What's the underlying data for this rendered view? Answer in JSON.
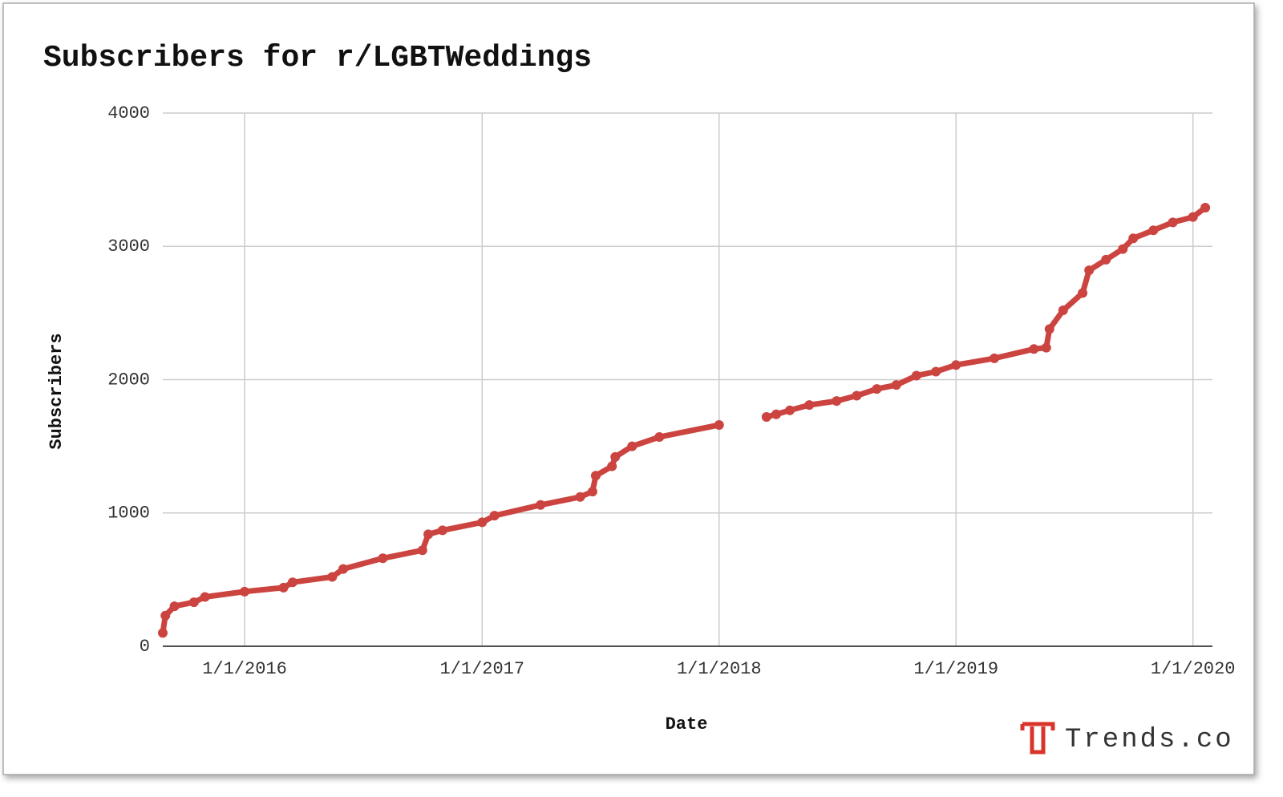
{
  "chart_data": {
    "type": "line",
    "title": "Subscribers for r/LGBTWeddings",
    "x_label": "Date",
    "y_label": "Subscribers",
    "watermark": "Trends.co",
    "color": "#cc4440",
    "grid": true,
    "x": [
      "8/28/2015",
      "9/1/2015",
      "9/15/2015",
      "10/15/2015",
      "11/1/2015",
      "1/1/2016",
      "3/1/2016",
      "3/15/2016",
      "5/15/2016",
      "6/1/2016",
      "8/1/2016",
      "10/1/2016",
      "10/10/2016",
      "11/1/2016",
      "1/1/2017",
      "1/20/2017",
      "4/1/2017",
      "6/1/2017",
      "6/20/2017",
      "6/25/2017",
      "7/20/2017",
      "7/25/2017",
      "8/20/2017",
      "10/1/2017",
      "1/1/2018",
      "2/1/2018",
      "3/15/2018",
      "3/30/2018",
      "4/20/2018",
      "5/20/2018",
      "7/1/2018",
      "8/1/2018",
      "9/1/2018",
      "10/1/2018",
      "11/1/2018",
      "12/1/2018",
      "1/1/2019",
      "3/1/2019",
      "5/1/2019",
      "5/20/2019",
      "5/25/2019",
      "6/15/2019",
      "7/15/2019",
      "7/25/2019",
      "8/20/2019",
      "9/15/2019",
      "10/1/2019",
      "11/1/2019",
      "12/1/2019",
      "1/1/2020",
      "1/20/2020"
    ],
    "values": [
      100,
      230,
      300,
      330,
      370,
      410,
      440,
      480,
      520,
      580,
      660,
      720,
      840,
      870,
      930,
      980,
      1060,
      1120,
      1160,
      1280,
      1350,
      1420,
      1500,
      1570,
      1660,
      null,
      1720,
      1740,
      1770,
      1810,
      1840,
      1880,
      1930,
      1960,
      2030,
      2060,
      2110,
      2160,
      2230,
      2240,
      2380,
      2520,
      2650,
      2820,
      2900,
      2980,
      3060,
      3120,
      3180,
      3220,
      3290
    ],
    "xlim": [
      "8/28/2015",
      "1/31/2020"
    ],
    "xticks": [
      "1/1/2016",
      "1/1/2017",
      "1/1/2018",
      "1/1/2019",
      "1/1/2020"
    ],
    "ylim": [
      0,
      4000
    ],
    "yticks": [
      0,
      1000,
      2000,
      3000,
      4000
    ]
  }
}
